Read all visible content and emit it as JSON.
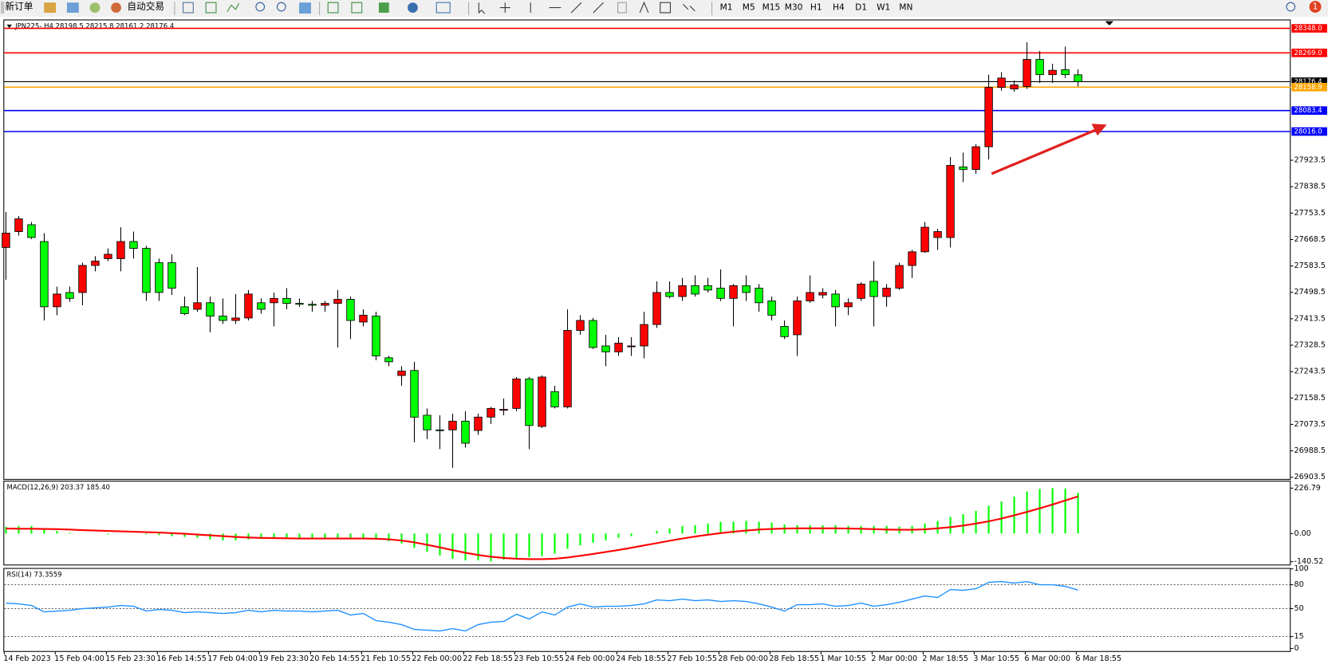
{
  "toolbar": {
    "new_order": "新订单",
    "auto_trade": "自动交易",
    "timeframes": [
      "M1",
      "M5",
      "M15",
      "M30",
      "H1",
      "H4",
      "D1",
      "W1",
      "MN"
    ],
    "notifications": "1"
  },
  "chart_data": {
    "type": "candlestick",
    "header": "JPN225-,H4  28198.5 28215.8 28161.2 28176.4",
    "up_color": "#ff0000",
    "down_color": "#00ff00",
    "categories": [
      "14 Feb 2023",
      null,
      null,
      null,
      "15 Feb 04:00",
      null,
      null,
      null,
      "15 Feb 23:30",
      null,
      null,
      null,
      "16 Feb 14:55",
      null,
      null,
      null,
      "17 Feb 04:00",
      null,
      null,
      null,
      "19 Feb 23:30",
      null,
      null,
      null,
      "20 Feb 14:55",
      null,
      null,
      null,
      "21 Feb 10:55",
      null,
      null,
      null,
      "22 Feb 00:00",
      null,
      null,
      null,
      "22 Feb 18:55",
      null,
      null,
      null,
      "23 Feb 10:55",
      null,
      null,
      null,
      "24 Feb 00:00",
      null,
      null,
      null,
      "24 Feb 18:55",
      null,
      null,
      null,
      "27 Feb 10:55",
      null,
      null,
      null,
      "28 Feb 00:00",
      null,
      null,
      null,
      "28 Feb 18:55",
      null,
      null,
      null,
      "1 Mar 10:55",
      null,
      null,
      null,
      "2 Mar 00:00",
      null,
      null,
      null,
      "2 Mar 18:55",
      null,
      null,
      null,
      "3 Mar 10:55",
      null,
      null,
      null,
      "6 Mar 00:00",
      null,
      null,
      null,
      "6 Mar 18:55"
    ],
    "ohlc": [
      [
        27643,
        27757,
        27539,
        27689
      ],
      [
        27694,
        27744,
        27681,
        27735
      ],
      [
        27716,
        27725,
        27670,
        27675
      ],
      [
        27662,
        27689,
        27408,
        27452
      ],
      [
        27452,
        27517,
        27425,
        27493
      ],
      [
        27498,
        27517,
        27468,
        27479
      ],
      [
        27498,
        27594,
        27457,
        27585
      ],
      [
        27585,
        27615,
        27566,
        27599
      ],
      [
        27607,
        27640,
        27599,
        27621
      ],
      [
        27607,
        27708,
        27566,
        27662
      ],
      [
        27662,
        27694,
        27607,
        27640
      ],
      [
        27640,
        27648,
        27471,
        27498
      ],
      [
        27594,
        27607,
        27471,
        27498
      ],
      [
        27594,
        27621,
        27490,
        27512
      ],
      [
        27452,
        27485,
        27425,
        27430
      ],
      [
        27444,
        27580,
        27436,
        27465
      ],
      [
        27465,
        27485,
        27370,
        27422
      ],
      [
        27422,
        27479,
        27397,
        27408
      ],
      [
        27408,
        27493,
        27397,
        27416
      ],
      [
        27416,
        27506,
        27408,
        27493
      ],
      [
        27465,
        27479,
        27430,
        27444
      ],
      [
        27465,
        27498,
        27389,
        27479
      ],
      [
        27479,
        27512,
        27444,
        27463
      ],
      [
        27463,
        27479,
        27452,
        27460
      ],
      [
        27460,
        27471,
        27436,
        27457
      ],
      [
        27457,
        27471,
        27436,
        27463
      ],
      [
        27463,
        27506,
        27321,
        27476
      ],
      [
        27476,
        27485,
        27348,
        27408
      ],
      [
        27403,
        27444,
        27389,
        27425
      ],
      [
        27422,
        27436,
        27280,
        27294
      ],
      [
        27288,
        27294,
        27261,
        27275
      ],
      [
        27231,
        27261,
        27198,
        27245
      ],
      [
        27247,
        27275,
        27016,
        27097
      ],
      [
        27103,
        27125,
        27026,
        27056
      ],
      [
        27056,
        27103,
        26994,
        27054
      ],
      [
        27056,
        27108,
        26934,
        27084
      ],
      [
        27084,
        27116,
        26999,
        27013
      ],
      [
        27054,
        27108,
        27040,
        27097
      ],
      [
        27097,
        27130,
        27075,
        27125
      ],
      [
        27119,
        27157,
        27103,
        27122
      ],
      [
        27125,
        27226,
        27116,
        27220
      ],
      [
        27220,
        27226,
        26994,
        27070
      ],
      [
        27067,
        27231,
        27062,
        27226
      ],
      [
        27179,
        27198,
        27125,
        27130
      ],
      [
        27130,
        27444,
        27125,
        27376
      ],
      [
        27376,
        27425,
        27362,
        27408
      ],
      [
        27408,
        27416,
        27316,
        27321
      ],
      [
        27326,
        27362,
        27261,
        27307
      ],
      [
        27307,
        27354,
        27294,
        27335
      ],
      [
        27324,
        27354,
        27294,
        27326
      ],
      [
        27326,
        27436,
        27286,
        27395
      ],
      [
        27395,
        27534,
        27384,
        27498
      ],
      [
        27498,
        27534,
        27479,
        27485
      ],
      [
        27485,
        27545,
        27471,
        27520
      ],
      [
        27520,
        27553,
        27485,
        27493
      ],
      [
        27520,
        27545,
        27498,
        27506
      ],
      [
        27512,
        27572,
        27471,
        27479
      ],
      [
        27479,
        27525,
        27389,
        27520
      ],
      [
        27520,
        27553,
        27471,
        27498
      ],
      [
        27512,
        27525,
        27436,
        27465
      ],
      [
        27471,
        27485,
        27408,
        27425
      ],
      [
        27389,
        27408,
        27348,
        27356
      ],
      [
        27362,
        27485,
        27294,
        27471
      ],
      [
        27471,
        27553,
        27465,
        27498
      ],
      [
        27490,
        27512,
        27479,
        27498
      ],
      [
        27493,
        27506,
        27389,
        27452
      ],
      [
        27452,
        27479,
        27425,
        27465
      ],
      [
        27479,
        27531,
        27471,
        27525
      ],
      [
        27534,
        27599,
        27389,
        27485
      ],
      [
        27485,
        27525,
        27452,
        27512
      ],
      [
        27512,
        27594,
        27506,
        27585
      ],
      [
        27585,
        27635,
        27545,
        27629
      ],
      [
        27629,
        27725,
        27626,
        27708
      ],
      [
        27675,
        27703,
        27635,
        27694
      ],
      [
        27675,
        27934,
        27643,
        27907
      ],
      [
        27902,
        27948,
        27853,
        27894
      ],
      [
        27894,
        27975,
        27880,
        27967
      ],
      [
        27967,
        28199,
        27926,
        28158
      ],
      [
        28158,
        28207,
        28147,
        28188
      ],
      [
        28153,
        28180,
        28144,
        28166
      ],
      [
        28161,
        28303,
        28153,
        28248
      ],
      [
        28248,
        28275,
        28172,
        28199
      ],
      [
        28199,
        28234,
        28172,
        28213
      ],
      [
        28215,
        28289,
        28188,
        28199
      ],
      [
        28198.5,
        28215.8,
        28161.2,
        28176.4
      ]
    ],
    "ylim": [
      26898,
      28371
    ],
    "yticks": [
      27923.5,
      27838.5,
      27753.5,
      27668.5,
      27583.5,
      27498.5,
      27413.5,
      27328.5,
      27243.5,
      27158.5,
      27073.5,
      26988.5,
      26903.5
    ],
    "levels": [
      {
        "value": 28348.0,
        "label": "28348.0",
        "color": "#ff0000"
      },
      {
        "value": 28269.0,
        "label": "28269.0",
        "color": "#ff0000"
      },
      {
        "value": 28176.4,
        "color": "#000000"
      },
      {
        "value": 28158.9,
        "label": "28158.9",
        "color": "#ffa500"
      },
      {
        "value": 28083.4,
        "label": "28083.4",
        "color": "#0000ff"
      },
      {
        "value": 28016.0,
        "label": "28016.0",
        "color": "#0000ff"
      }
    ],
    "macd": {
      "label": "MACD(12,26,9) 203.37 185.40",
      "ylim": [
        -155,
        260
      ],
      "yticks": [
        226.79,
        {
          "value": 0,
          "label": "0.00"
        },
        -140.52
      ],
      "hist_color": "#00ff00",
      "signal_color": "#ff0000",
      "histogram": [
        34,
        38,
        38,
        25,
        13,
        4,
        0,
        0,
        -4,
        0,
        0,
        -4,
        -8,
        -13,
        -17,
        -21,
        -29,
        -34,
        -34,
        -29,
        -25,
        -25,
        -21,
        -21,
        -21,
        -21,
        -21,
        -21,
        -21,
        -29,
        -38,
        -50,
        -71,
        -92,
        -109,
        -126,
        -134,
        -134,
        -139,
        -130,
        -122,
        -118,
        -113,
        -101,
        -76,
        -59,
        -46,
        -34,
        -21,
        -13,
        0,
        13,
        25,
        38,
        42,
        50,
        59,
        59,
        63,
        59,
        55,
        46,
        42,
        42,
        42,
        42,
        38,
        38,
        38,
        38,
        34,
        38,
        50,
        63,
        84,
        97,
        113,
        139,
        160,
        185,
        210,
        223,
        227,
        225,
        203.37
      ],
      "signal": [
        25,
        24,
        24,
        23,
        22,
        20,
        17,
        15,
        13,
        11,
        9,
        7,
        5,
        2,
        -1,
        -5,
        -9,
        -13,
        -17,
        -20,
        -22,
        -23,
        -24,
        -25,
        -25,
        -25,
        -25,
        -25,
        -25,
        -26,
        -29,
        -35,
        -44,
        -56,
        -69,
        -83,
        -96,
        -107,
        -116,
        -122,
        -126,
        -128,
        -128,
        -126,
        -120,
        -111,
        -102,
        -92,
        -82,
        -71,
        -59,
        -48,
        -36,
        -25,
        -15,
        -6,
        2,
        9,
        15,
        20,
        23,
        25,
        26,
        26,
        26,
        26,
        25,
        24,
        22,
        20,
        19,
        19,
        21,
        26,
        32,
        40,
        50,
        61,
        75,
        91,
        108,
        126,
        145,
        165,
        185.4
      ]
    },
    "rsi": {
      "label": "RSI(14) 73.3559",
      "ylim": [
        0,
        100
      ],
      "yticks": [
        100,
        80,
        50,
        15,
        0
      ],
      "levels": [
        80,
        50,
        15
      ],
      "color": "#1e90ff",
      "values": [
        57,
        56,
        54,
        46,
        47,
        48,
        50,
        51,
        52,
        54,
        53,
        47,
        49,
        48,
        45,
        46,
        45,
        44,
        45,
        48,
        46,
        48,
        47,
        47,
        46,
        47,
        48,
        42,
        44,
        35,
        33,
        30,
        24,
        23,
        22,
        25,
        22,
        30,
        33,
        34,
        43,
        37,
        46,
        42,
        52,
        56,
        52,
        53,
        53,
        54,
        56,
        61,
        60,
        62,
        60,
        61,
        59,
        60,
        59,
        56,
        52,
        47,
        55,
        55,
        56,
        53,
        54,
        57,
        53,
        55,
        58,
        62,
        66,
        64,
        74,
        73,
        75,
        83,
        84,
        82,
        84,
        80,
        80,
        78,
        73.3559
      ]
    }
  }
}
